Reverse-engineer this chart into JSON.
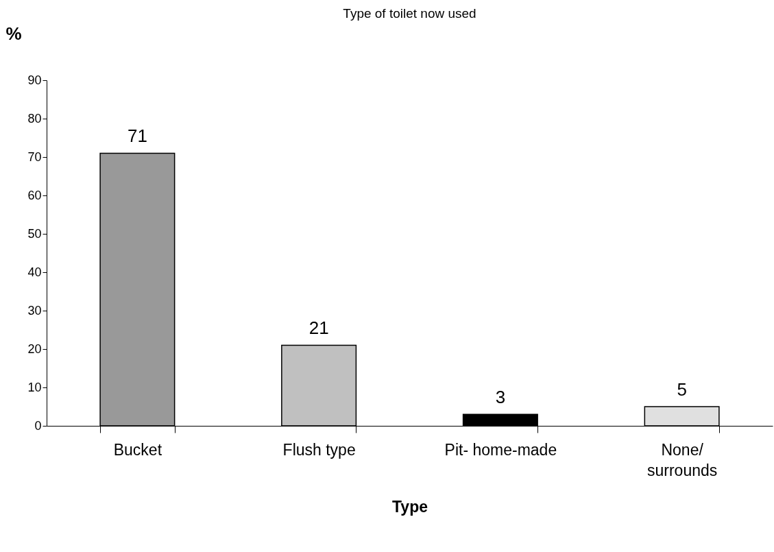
{
  "chart_data": {
    "type": "bar",
    "title": "Type of toilet now used",
    "xlabel": "Type",
    "ylabel": "%",
    "categories": [
      "Bucket",
      "Flush type",
      "Pit- home-made",
      "None/ surrounds"
    ],
    "values": [
      71,
      21,
      3,
      5
    ],
    "colors": [
      "#999999",
      "#c0c0c0",
      "#000000",
      "#e0e0e0"
    ],
    "ylim": [
      0,
      90
    ],
    "yticks": [
      0,
      10,
      20,
      30,
      40,
      50,
      60,
      70,
      80,
      90
    ],
    "data_labels": true,
    "grid": false,
    "legend": false
  }
}
